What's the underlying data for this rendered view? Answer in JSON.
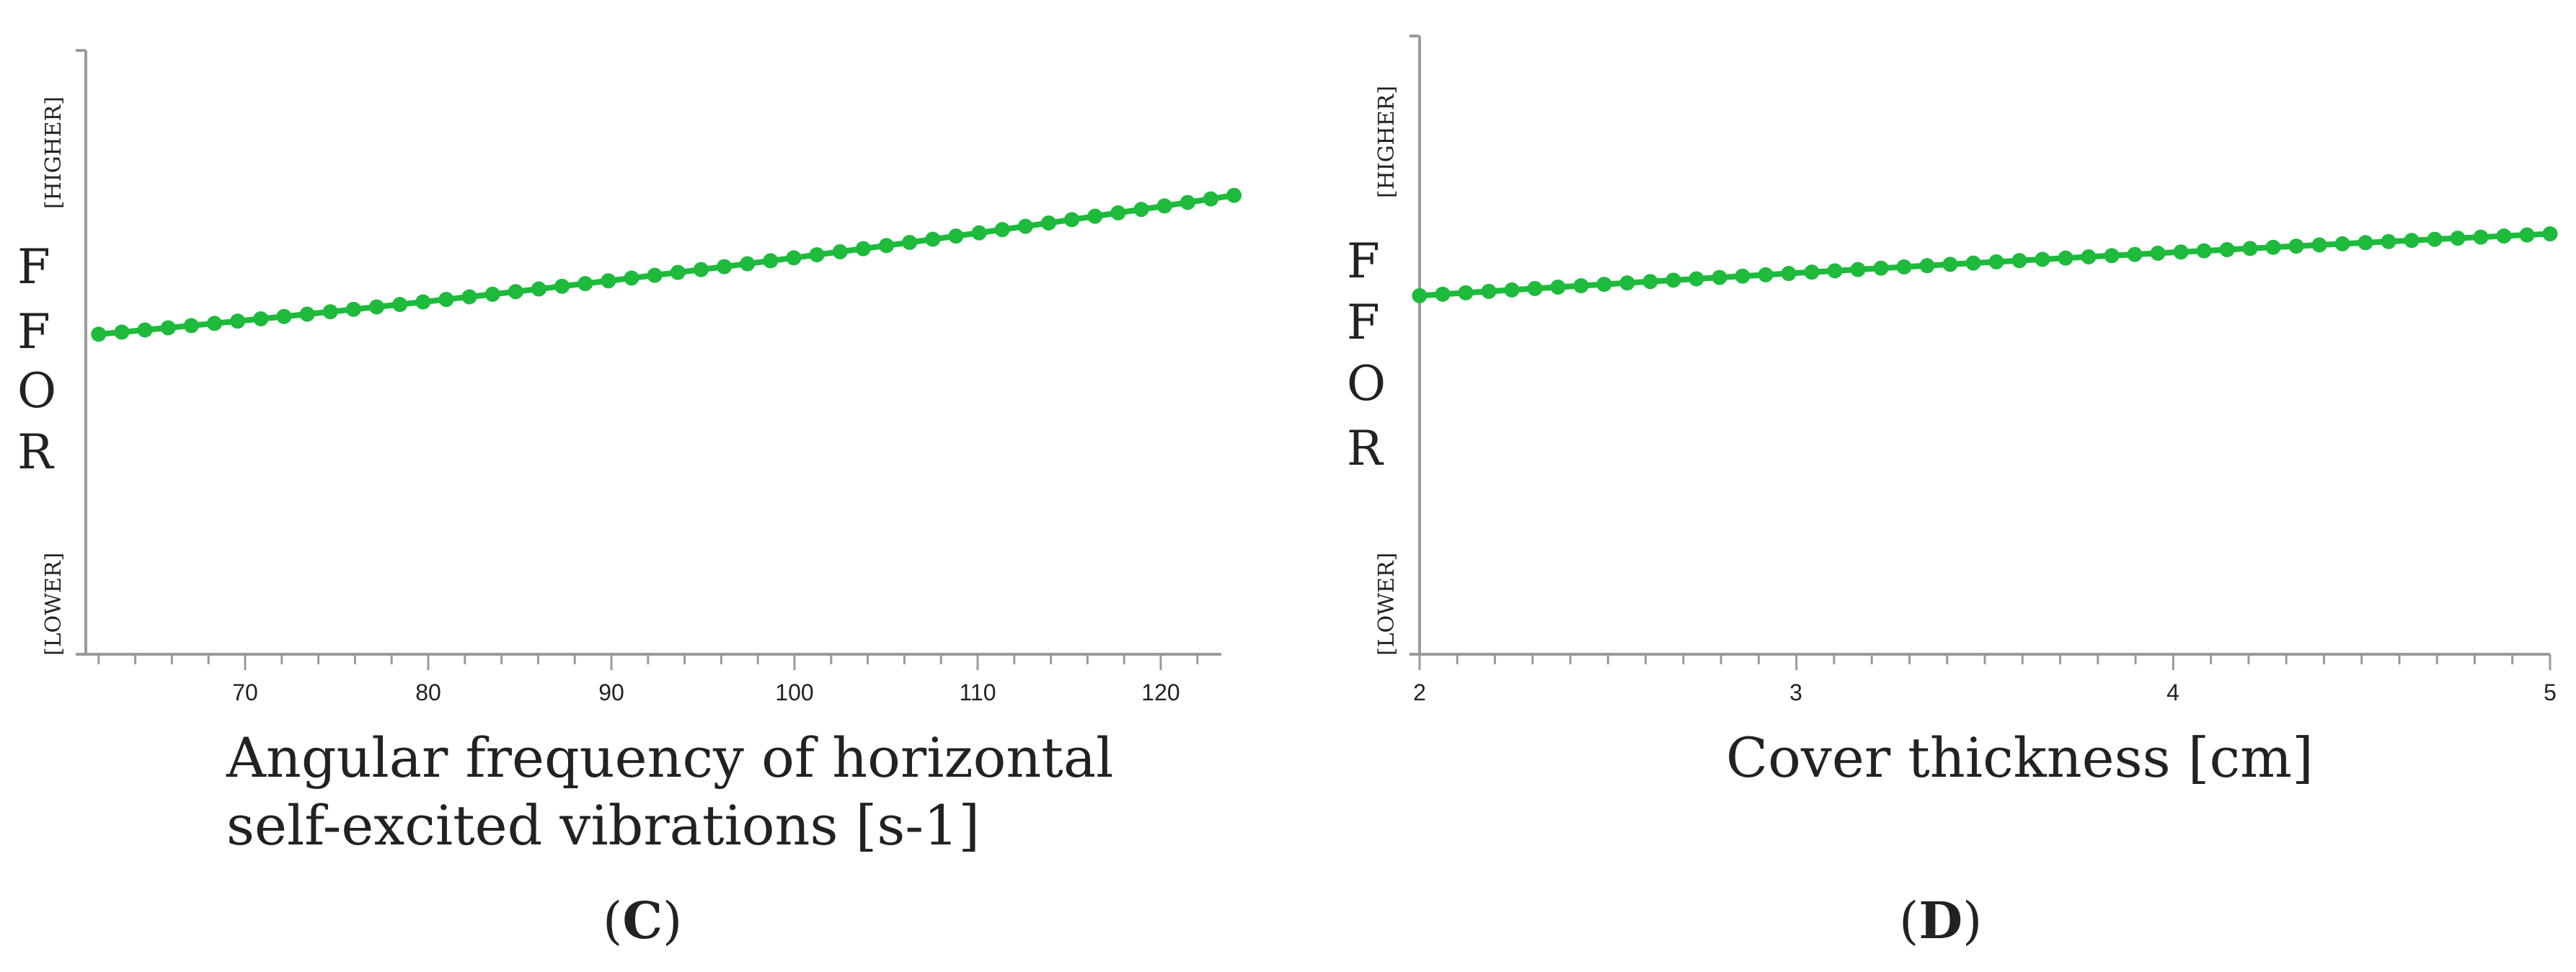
{
  "chart_data": [
    {
      "type": "line",
      "panel_label": "C",
      "xlabel_lines": [
        "Angular frequency of horizontal",
        "self-excited vibrations [s-1]"
      ],
      "ylabel_letters": [
        "F",
        "F",
        "O",
        "R"
      ],
      "y_high_label": "[HIGHER]",
      "y_low_label": "[LOWER]",
      "xlim": [
        62,
        124
      ],
      "x_ticks": [
        "70",
        "80",
        "90",
        "100",
        "110",
        "120"
      ],
      "ylim": [
        0,
        1
      ],
      "series": [
        {
          "x_start": 62,
          "x_end": 124,
          "points": 50,
          "y_start": 0.53,
          "y_end": 0.76,
          "curvature": 0.06
        }
      ],
      "line_color": "#1dba3c"
    },
    {
      "type": "line",
      "panel_label": "D",
      "xlabel_lines": [
        "Cover thickness [cm]"
      ],
      "ylabel_letters": [
        "F",
        "F",
        "O",
        "R"
      ],
      "y_high_label": "[HIGHER]",
      "y_low_label": "[LOWER]",
      "xlim": [
        2,
        5
      ],
      "x_ticks": [
        "2",
        "3",
        "4",
        "5"
      ],
      "ylim": [
        0,
        1
      ],
      "series": [
        {
          "x_start": 2,
          "x_end": 5,
          "points": 50,
          "y_start": 0.58,
          "y_end": 0.68,
          "curvature": -0.015
        }
      ],
      "line_color": "#1dba3c"
    }
  ]
}
